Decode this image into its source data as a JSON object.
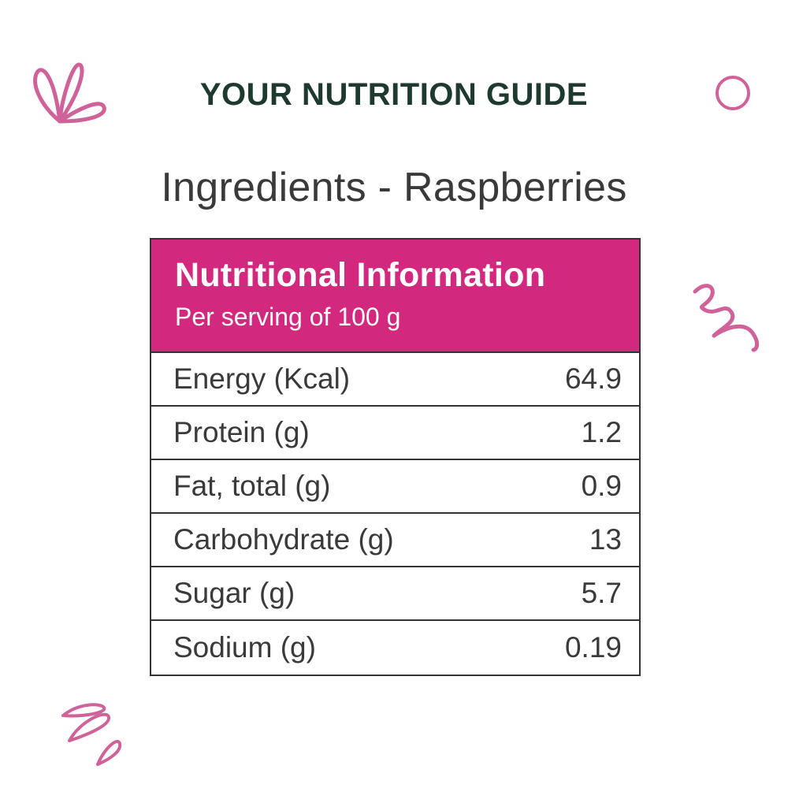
{
  "heading": "YOUR NUTRITION GUIDE",
  "subheading": "Ingredients - Raspberries",
  "panel": {
    "title": "Nutritional Information",
    "subtitle": "Per serving of 100 g",
    "rows": [
      {
        "label": "Energy (Kcal)",
        "value": "64.9"
      },
      {
        "label": "Protein (g)",
        "value": "1.2"
      },
      {
        "label": "Fat, total (g)",
        "value": "0.9"
      },
      {
        "label": "Carbohydrate (g)",
        "value": "13"
      },
      {
        "label": "Sugar (g)",
        "value": "5.7"
      },
      {
        "label": "Sodium (g)",
        "value": "0.19"
      }
    ]
  },
  "colors": {
    "accent": "#d2287e",
    "doodle": "#d0629a",
    "heading": "#1e3a2e",
    "text": "#3a3a3a"
  },
  "decorations": [
    "leaf-doodle-icon",
    "circle-doodle-icon",
    "squiggle-doodle-icon",
    "strokes-doodle-icon"
  ]
}
